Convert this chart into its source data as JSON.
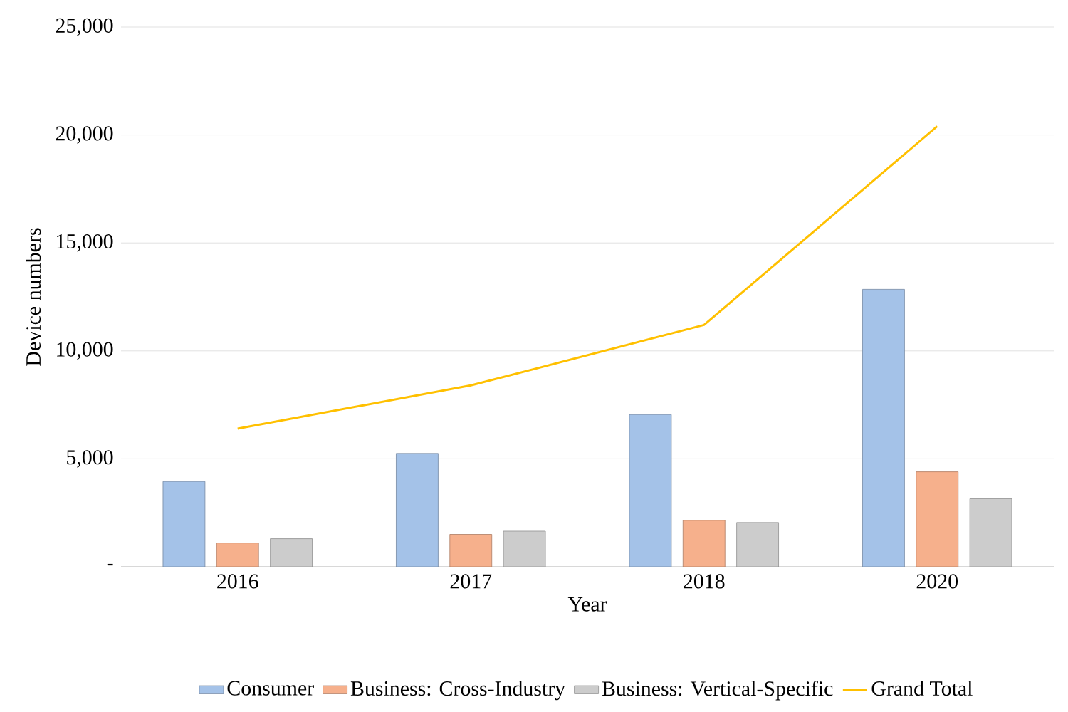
{
  "chart_data": {
    "type": "bar",
    "xlabel": "Year",
    "ylabel": "Device numbers",
    "categories": [
      "2016",
      "2017",
      "2018",
      "2020"
    ],
    "series": [
      {
        "name": "Consumer",
        "color": "#a4c2e8",
        "values": [
          3950,
          5250,
          7050,
          12850
        ]
      },
      {
        "name": "Business: Cross-Industry",
        "color": "#f6b08c",
        "values": [
          1100,
          1500,
          2150,
          4400
        ]
      },
      {
        "name": "Business: Vertical-Specific",
        "color": "#cccccc",
        "values": [
          1300,
          1650,
          2050,
          3150
        ]
      },
      {
        "name": "Grand Total",
        "type": "line",
        "color": "#ffc000",
        "values": [
          6400,
          8400,
          11200,
          20400
        ]
      }
    ],
    "ylim": [
      0,
      25000
    ],
    "yticks": [
      {
        "value": 0,
        "label": "-"
      },
      {
        "value": 5000,
        "label": "5,000"
      },
      {
        "value": 10000,
        "label": "10,000"
      },
      {
        "value": 15000,
        "label": "15,000"
      },
      {
        "value": 20000,
        "label": "20,000"
      },
      {
        "value": 25000,
        "label": "25,000"
      }
    ],
    "grid": "y",
    "legend": "bottom"
  }
}
